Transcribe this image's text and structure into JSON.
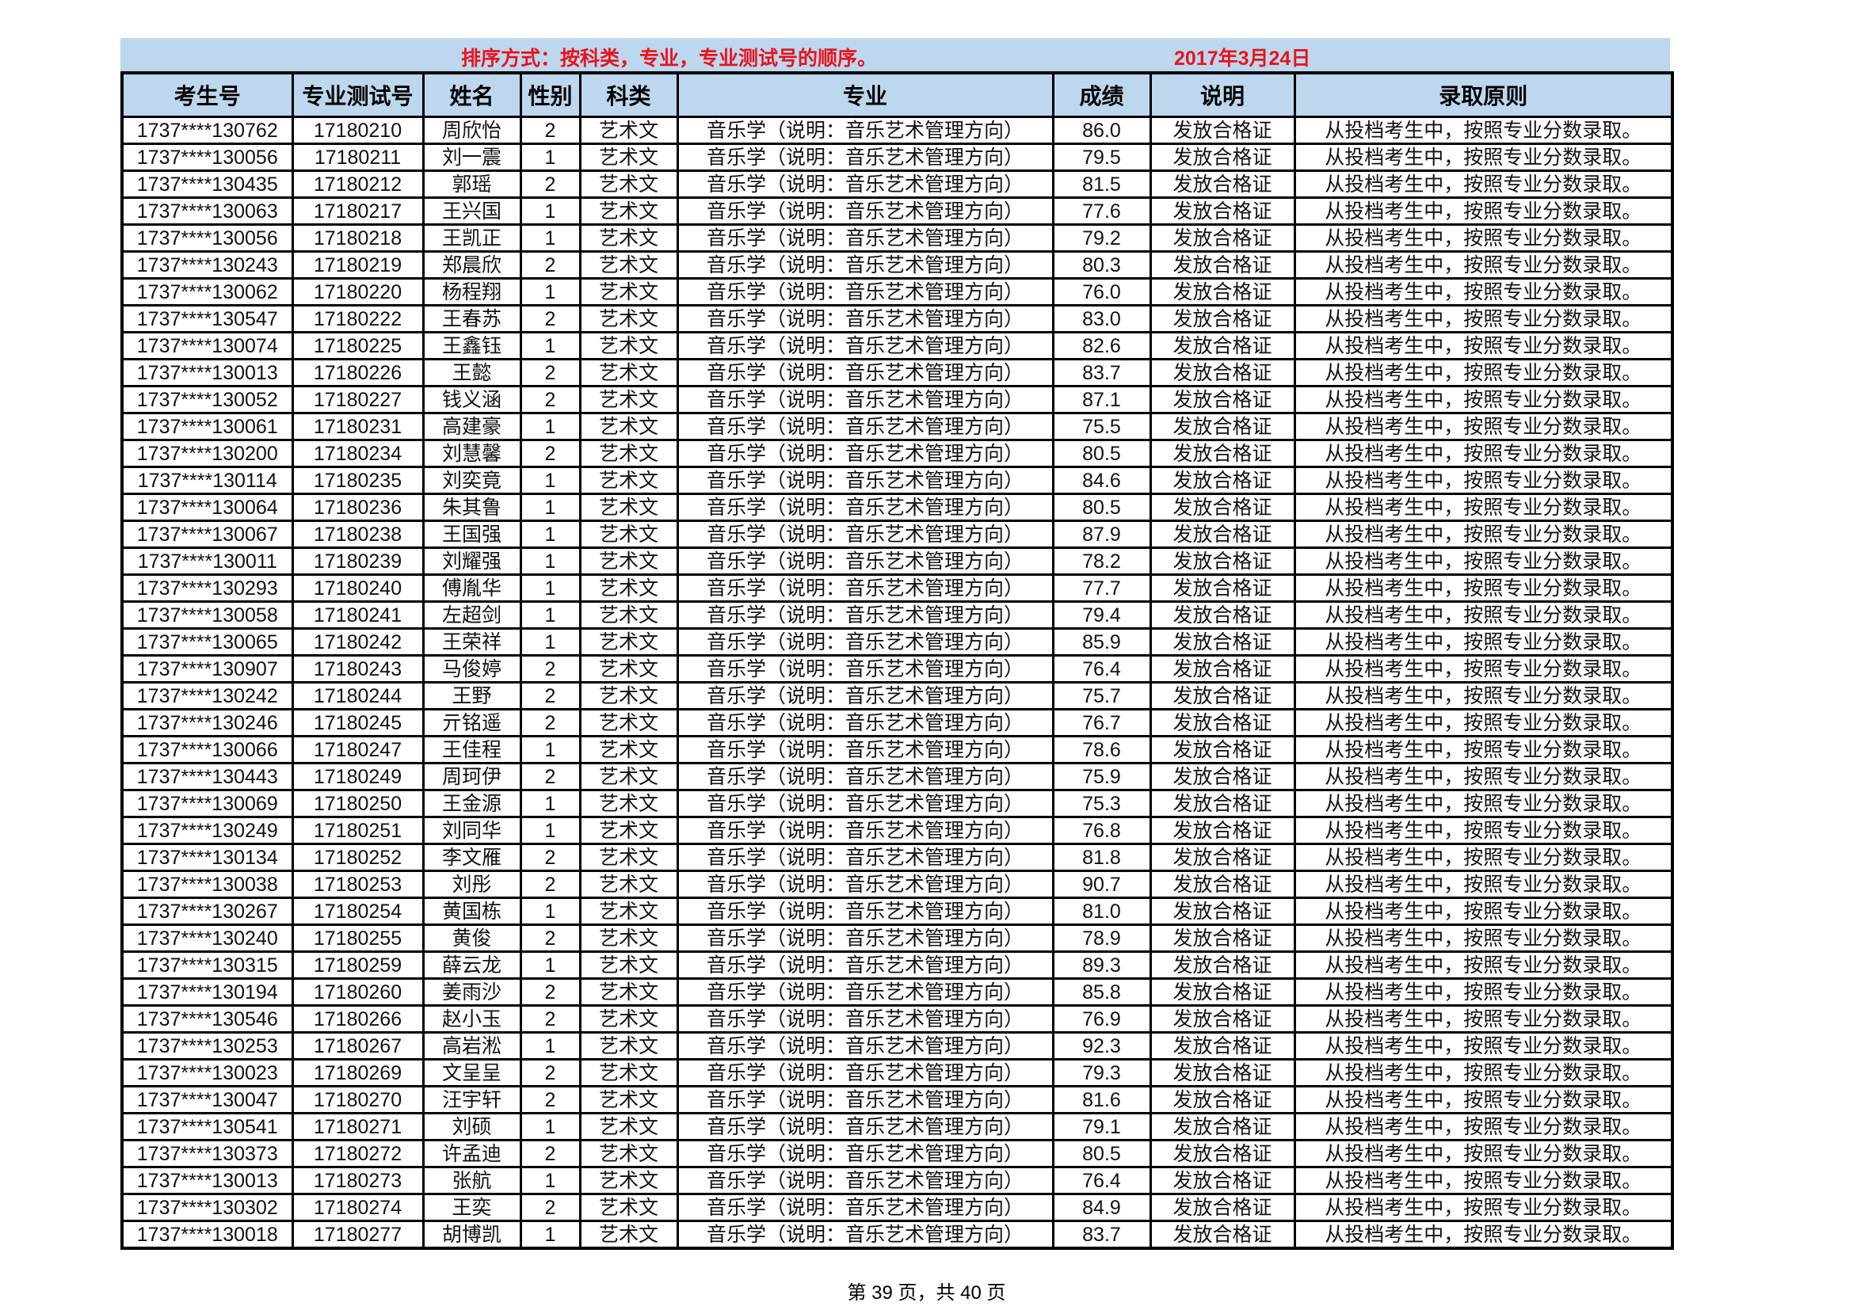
{
  "banner": {
    "sort_text": "排序方式：按科类，专业，专业测试号的顺序。",
    "date": "2017年3月24日"
  },
  "headers": [
    "考生号",
    "专业测试号",
    "姓名",
    "性别",
    "科类",
    "专业",
    "成绩",
    "说明",
    "录取原则"
  ],
  "shared": {
    "category": "艺术文",
    "major": "音乐学（说明：音乐艺术管理方向）",
    "note": "发放合格证",
    "principle": "从投档考生中，按照专业分数录取。"
  },
  "rows": [
    {
      "id": "1737****130762",
      "test": "17180210",
      "name": "周欣怡",
      "gender": "2",
      "score": "86.0"
    },
    {
      "id": "1737****130056",
      "test": "17180211",
      "name": "刘一震",
      "gender": "1",
      "score": "79.5"
    },
    {
      "id": "1737****130435",
      "test": "17180212",
      "name": "郭瑶",
      "gender": "2",
      "score": "81.5"
    },
    {
      "id": "1737****130063",
      "test": "17180217",
      "name": "王兴国",
      "gender": "1",
      "score": "77.6"
    },
    {
      "id": "1737****130056",
      "test": "17180218",
      "name": "王凯正",
      "gender": "1",
      "score": "79.2"
    },
    {
      "id": "1737****130243",
      "test": "17180219",
      "name": "郑晨欣",
      "gender": "2",
      "score": "80.3"
    },
    {
      "id": "1737****130062",
      "test": "17180220",
      "name": "杨程翔",
      "gender": "1",
      "score": "76.0"
    },
    {
      "id": "1737****130547",
      "test": "17180222",
      "name": "王春苏",
      "gender": "2",
      "score": "83.0"
    },
    {
      "id": "1737****130074",
      "test": "17180225",
      "name": "王鑫钰",
      "gender": "1",
      "score": "82.6"
    },
    {
      "id": "1737****130013",
      "test": "17180226",
      "name": "王懿",
      "gender": "2",
      "score": "83.7"
    },
    {
      "id": "1737****130052",
      "test": "17180227",
      "name": "钱义涵",
      "gender": "2",
      "score": "87.1"
    },
    {
      "id": "1737****130061",
      "test": "17180231",
      "name": "高建豪",
      "gender": "1",
      "score": "75.5"
    },
    {
      "id": "1737****130200",
      "test": "17180234",
      "name": "刘慧馨",
      "gender": "2",
      "score": "80.5"
    },
    {
      "id": "1737****130114",
      "test": "17180235",
      "name": "刘奕竟",
      "gender": "1",
      "score": "84.6"
    },
    {
      "id": "1737****130064",
      "test": "17180236",
      "name": "朱其鲁",
      "gender": "1",
      "score": "80.5"
    },
    {
      "id": "1737****130067",
      "test": "17180238",
      "name": "王国强",
      "gender": "1",
      "score": "87.9"
    },
    {
      "id": "1737****130011",
      "test": "17180239",
      "name": "刘耀强",
      "gender": "1",
      "score": "78.2"
    },
    {
      "id": "1737****130293",
      "test": "17180240",
      "name": "傅胤华",
      "gender": "1",
      "score": "77.7"
    },
    {
      "id": "1737****130058",
      "test": "17180241",
      "name": "左超剑",
      "gender": "1",
      "score": "79.4"
    },
    {
      "id": "1737****130065",
      "test": "17180242",
      "name": "王荣祥",
      "gender": "1",
      "score": "85.9"
    },
    {
      "id": "1737****130907",
      "test": "17180243",
      "name": "马俊婷",
      "gender": "2",
      "score": "76.4"
    },
    {
      "id": "1737****130242",
      "test": "17180244",
      "name": "王野",
      "gender": "2",
      "score": "75.7"
    },
    {
      "id": "1737****130246",
      "test": "17180245",
      "name": "亓铭遥",
      "gender": "2",
      "score": "76.7"
    },
    {
      "id": "1737****130066",
      "test": "17180247",
      "name": "王佳程",
      "gender": "1",
      "score": "78.6"
    },
    {
      "id": "1737****130443",
      "test": "17180249",
      "name": "周珂伊",
      "gender": "2",
      "score": "75.9"
    },
    {
      "id": "1737****130069",
      "test": "17180250",
      "name": "王金源",
      "gender": "1",
      "score": "75.3"
    },
    {
      "id": "1737****130249",
      "test": "17180251",
      "name": "刘同华",
      "gender": "1",
      "score": "76.8"
    },
    {
      "id": "1737****130134",
      "test": "17180252",
      "name": "李文雁",
      "gender": "2",
      "score": "81.8"
    },
    {
      "id": "1737****130038",
      "test": "17180253",
      "name": "刘彤",
      "gender": "2",
      "score": "90.7"
    },
    {
      "id": "1737****130267",
      "test": "17180254",
      "name": "黄国栋",
      "gender": "1",
      "score": "81.0"
    },
    {
      "id": "1737****130240",
      "test": "17180255",
      "name": "黄俊",
      "gender": "2",
      "score": "78.9"
    },
    {
      "id": "1737****130315",
      "test": "17180259",
      "name": "薛云龙",
      "gender": "1",
      "score": "89.3"
    },
    {
      "id": "1737****130194",
      "test": "17180260",
      "name": "姜雨沙",
      "gender": "2",
      "score": "85.8"
    },
    {
      "id": "1737****130546",
      "test": "17180266",
      "name": "赵小玉",
      "gender": "2",
      "score": "76.9"
    },
    {
      "id": "1737****130253",
      "test": "17180267",
      "name": "高岩淞",
      "gender": "1",
      "score": "92.3"
    },
    {
      "id": "1737****130023",
      "test": "17180269",
      "name": "文呈呈",
      "gender": "2",
      "score": "79.3"
    },
    {
      "id": "1737****130047",
      "test": "17180270",
      "name": "汪宇轩",
      "gender": "2",
      "score": "81.6"
    },
    {
      "id": "1737****130541",
      "test": "17180271",
      "name": "刘硕",
      "gender": "1",
      "score": "79.1"
    },
    {
      "id": "1737****130373",
      "test": "17180272",
      "name": "许孟迪",
      "gender": "2",
      "score": "80.5"
    },
    {
      "id": "1737****130013",
      "test": "17180273",
      "name": "张航",
      "gender": "1",
      "score": "76.4"
    },
    {
      "id": "1737****130302",
      "test": "17180274",
      "name": "王奕",
      "gender": "2",
      "score": "84.9"
    },
    {
      "id": "1737****130018",
      "test": "17180277",
      "name": "胡博凯",
      "gender": "1",
      "score": "83.7"
    }
  ],
  "footer": {
    "page_text": "第 39 页，共 40 页"
  },
  "colors": {
    "header_bg": "#bdd7ee",
    "banner_text": "#e8141b"
  }
}
